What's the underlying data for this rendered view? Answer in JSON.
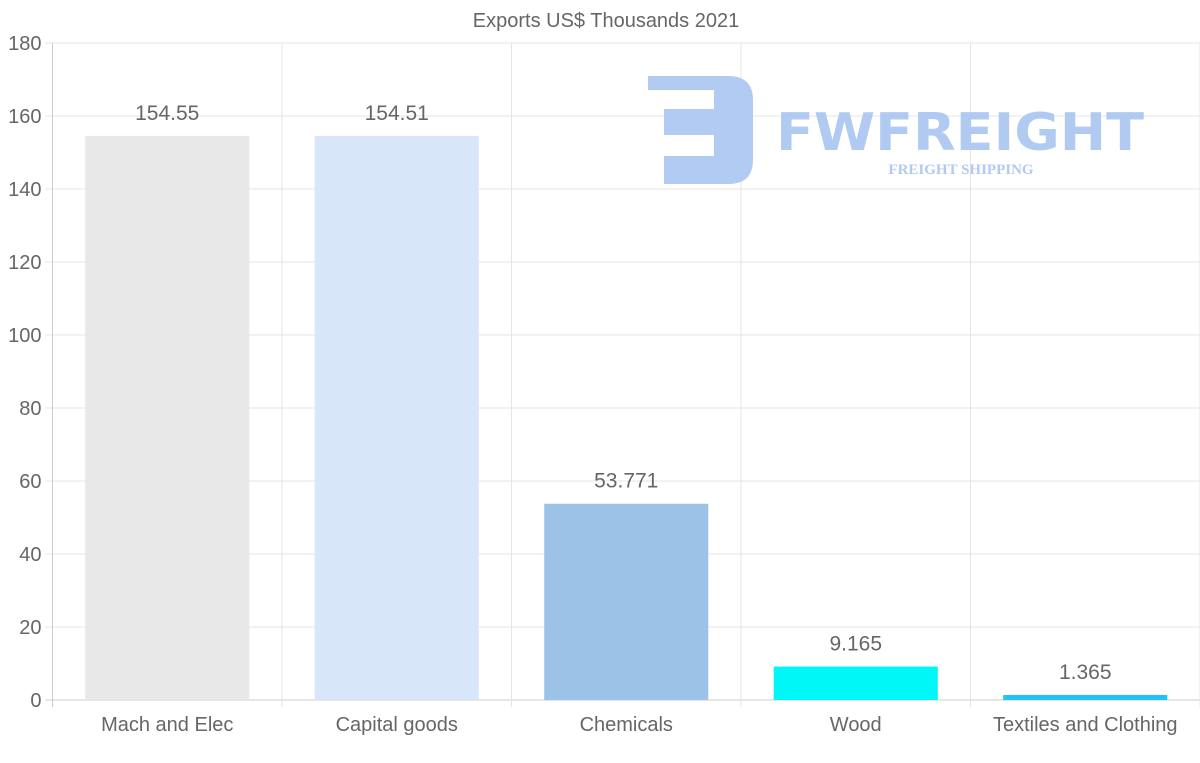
{
  "chart_data": {
    "type": "bar",
    "title": "Exports US$ Thousands 2021",
    "xlabel": "",
    "ylabel": "",
    "categories": [
      "Mach and Elec",
      "Capital goods",
      "Chemicals",
      "Wood",
      "Textiles and Clothing"
    ],
    "values": [
      154.55,
      154.51,
      53.771,
      9.165,
      1.365
    ],
    "value_labels": [
      "154.55",
      "154.51",
      "53.771",
      "9.165",
      "1.365"
    ],
    "colors": [
      "#e8e8e8",
      "#d7e7f9",
      "#9cc3e7",
      "#00f7f7",
      "#1ec4f4"
    ],
    "ylim": [
      0,
      180
    ],
    "yticks": [
      0,
      20,
      40,
      60,
      80,
      100,
      120,
      140,
      160,
      180
    ],
    "grid": true,
    "legend": "none"
  },
  "watermark": {
    "brand": "FWFREIGHT",
    "tagline": "FREIGHT SHIPPING",
    "color": "#a9c5f1"
  }
}
